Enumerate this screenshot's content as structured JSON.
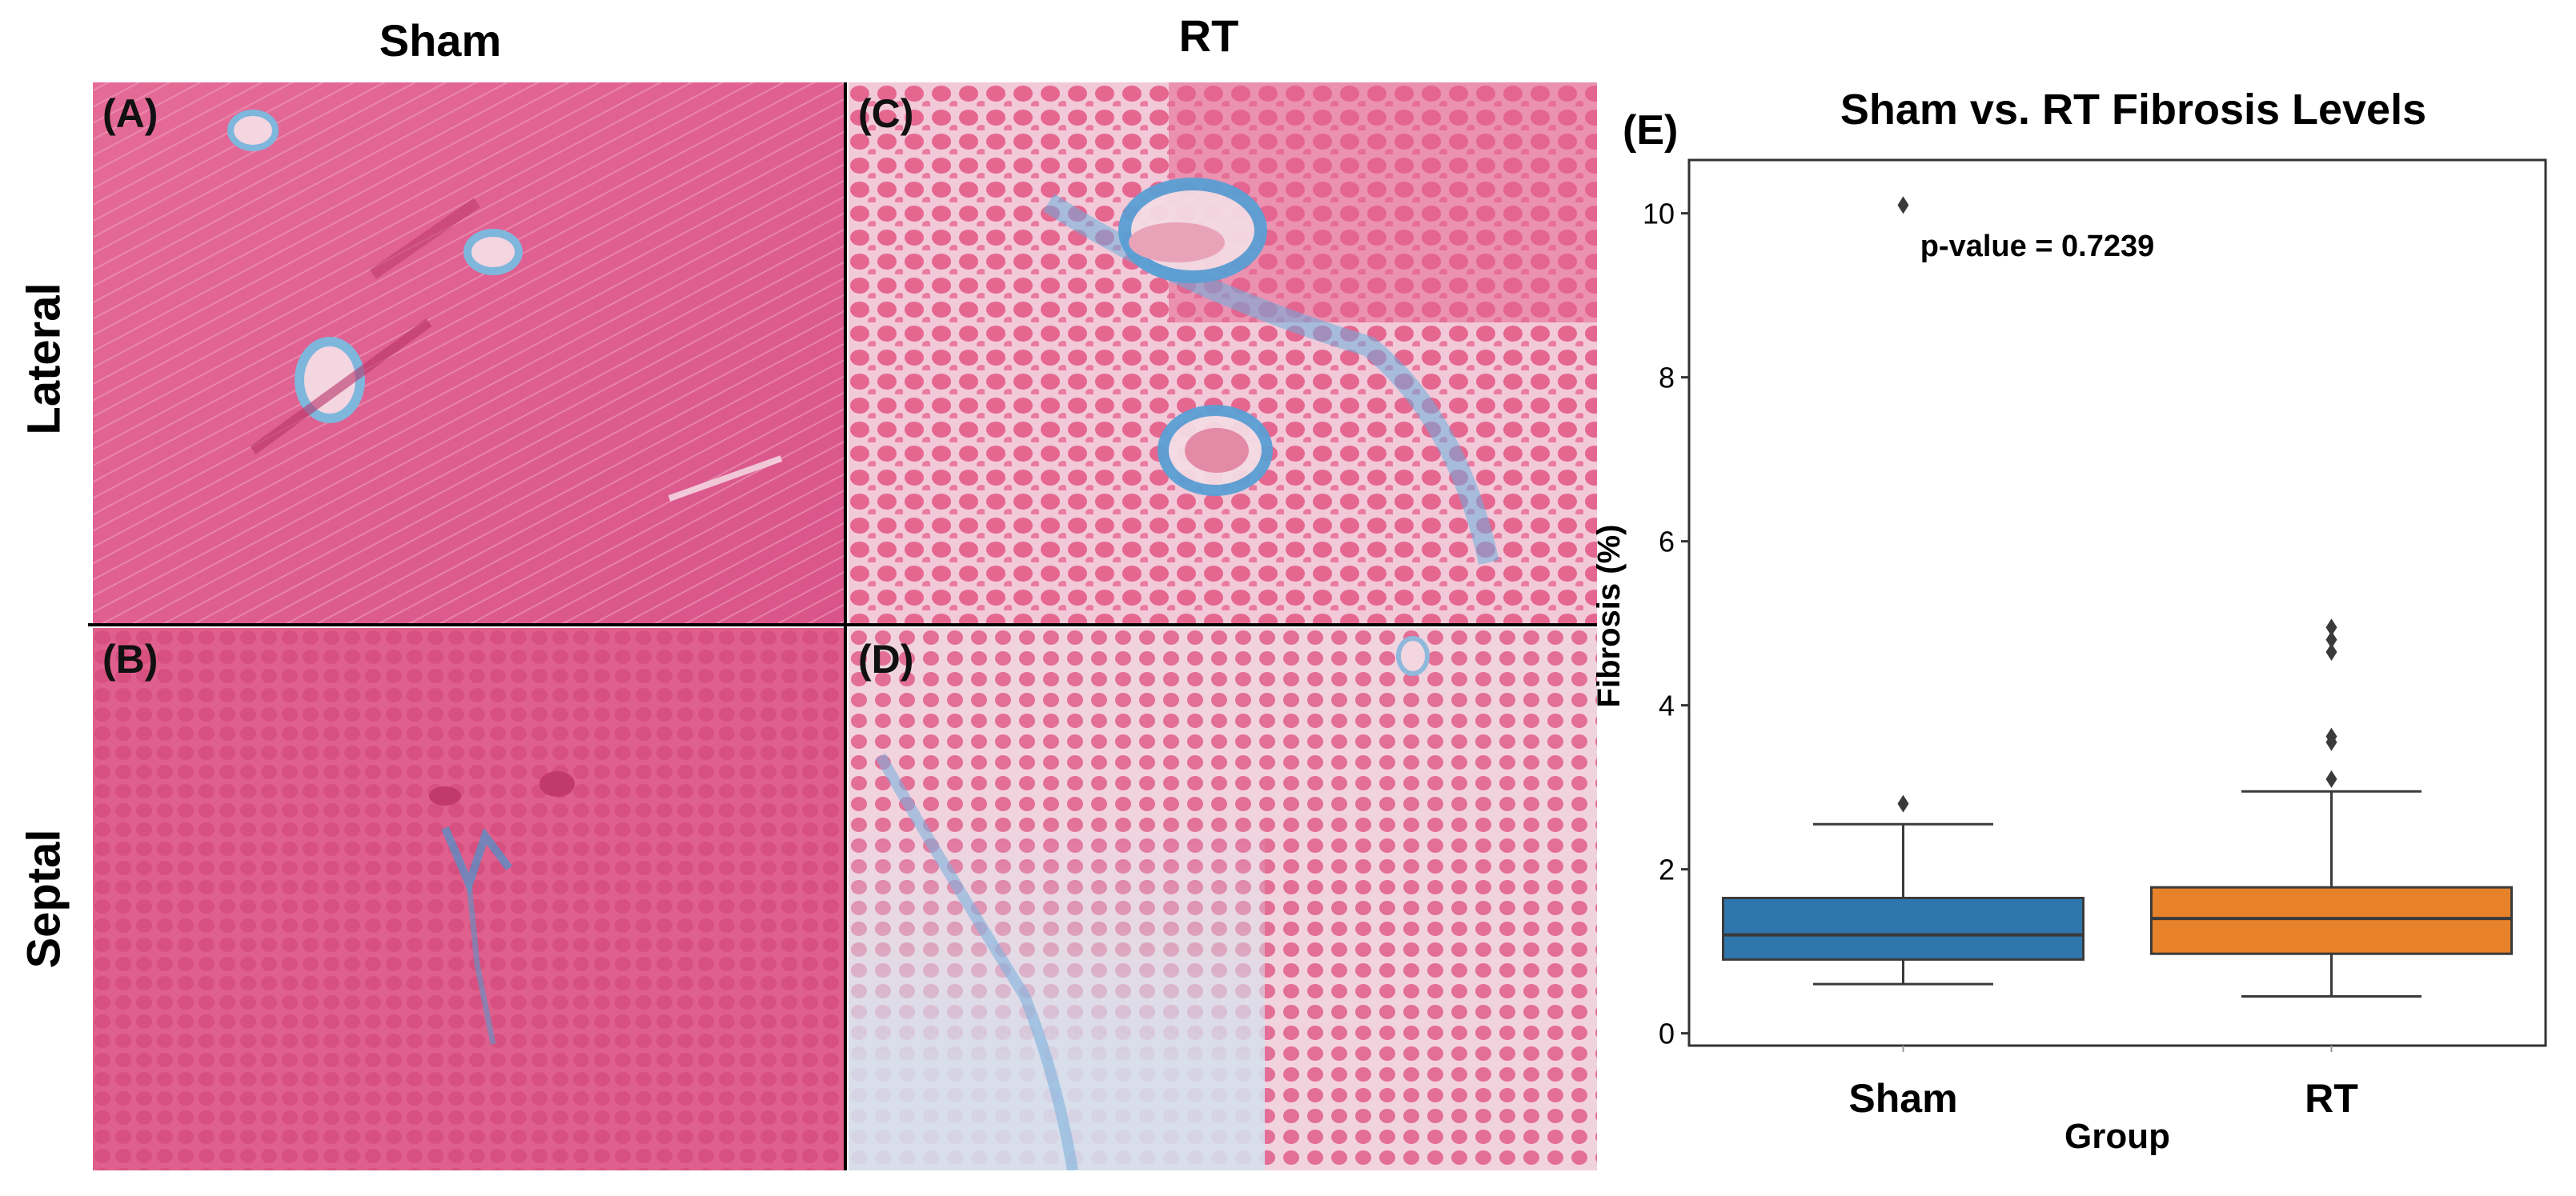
{
  "figure": {
    "column_headers": [
      "Sham",
      "RT"
    ],
    "row_headers": [
      "Lateral",
      "Septal"
    ],
    "panels": [
      {
        "label": "(A)",
        "group": "Sham",
        "region": "Lateral",
        "tint": "#de5a8a"
      },
      {
        "label": "(C)",
        "group": "RT",
        "region": "Lateral",
        "tint": "#e98aa8"
      },
      {
        "label": "(B)",
        "group": "Sham",
        "region": "Septal",
        "tint": "#d94f83"
      },
      {
        "label": "(D)",
        "group": "RT",
        "region": "Septal",
        "tint": "#e9a7bc"
      }
    ],
    "stain_colors": {
      "muscle": "#df5d8d",
      "collagen": "#5a9fd4",
      "background": "#f7e9ef"
    }
  },
  "chart_data": {
    "type": "box",
    "panel_label": "(E)",
    "title": "Sham vs. RT Fibrosis Levels",
    "xlabel": "Group",
    "ylabel": "Fibrosis (%)",
    "annotation": "p-value = 0.7239",
    "ylim": [
      -0.15,
      10.65
    ],
    "yticks": [
      0,
      2,
      4,
      6,
      8,
      10
    ],
    "categories": [
      "Sham",
      "RT"
    ],
    "series": [
      {
        "category": "Sham",
        "color": "#2f76ad",
        "whisker_low": 0.6,
        "q1": 0.9,
        "median": 1.2,
        "q3": 1.65,
        "whisker_high": 2.55,
        "outliers": [
          2.8,
          10.1
        ]
      },
      {
        "category": "RT",
        "color": "#e8822a",
        "whisker_low": 0.45,
        "q1": 0.97,
        "median": 1.4,
        "q3": 1.78,
        "whisker_high": 2.95,
        "outliers": [
          3.1,
          3.55,
          3.62,
          4.65,
          4.8,
          4.95
        ]
      }
    ]
  }
}
